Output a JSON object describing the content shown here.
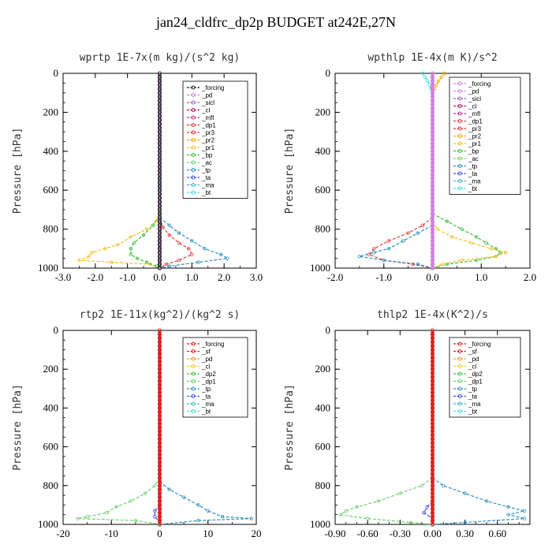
{
  "title": "jan24_cldfrc_dp2p  BUDGET at242E,27N",
  "chart_data": [
    {
      "type": "line",
      "title": "wprtp  1E-7x(m kg)/(s^2 kg)",
      "ylabel": "Pressure [hPa]",
      "xlim": [
        -3.0,
        3.0
      ],
      "ylim": [
        1000,
        0
      ],
      "xticks": [
        "-3.0",
        "-2.0",
        "-1.0",
        "0.0",
        "1.0",
        "2.0",
        "3.0"
      ],
      "yticks": [
        "0",
        "200",
        "400",
        "600",
        "800",
        "1000"
      ],
      "legend": [
        "_forcing",
        "_pd",
        "_sicl",
        "_cl",
        "_mfl",
        "_dp1",
        "_pr3",
        "_pr2",
        "_pr1",
        "_bp",
        "_ac",
        "_tp",
        "_ta",
        "_ma",
        "_bt"
      ],
      "legend_colors": [
        "#222222",
        "#d080e0",
        "#9a60d0",
        "#b01070",
        "#c03090",
        "#e04040",
        "#ff3030",
        "#ffa500",
        "#f0c020",
        "#40c040",
        "#70d070",
        "#3090c0",
        "#4050e0",
        "#40b0d0",
        "#40e0e0"
      ],
      "series": [
        {
          "name": "_pr1",
          "color": "#f0c020",
          "pressure": [
            720,
            760,
            800,
            840,
            880,
            900,
            920,
            940,
            960,
            970,
            980,
            1000
          ],
          "values": [
            0,
            -0.1,
            -0.4,
            -0.9,
            -1.3,
            -1.7,
            -2.1,
            -2.2,
            -2.5,
            -1.5,
            -0.3,
            0
          ]
        },
        {
          "name": "_ac",
          "color": "#40c040",
          "pressure": [
            730,
            780,
            830,
            870,
            900,
            930,
            950,
            970,
            990,
            1000
          ],
          "values": [
            0,
            -0.2,
            -0.5,
            -0.8,
            -0.9,
            -0.9,
            -0.7,
            -0.4,
            -0.1,
            0
          ]
        },
        {
          "name": "_tp",
          "color": "#3090c0",
          "pressure": [
            740,
            780,
            820,
            860,
            900,
            930,
            950,
            970,
            990,
            1000
          ],
          "values": [
            0,
            0.3,
            0.6,
            1.0,
            1.4,
            1.9,
            2.1,
            1.2,
            0.3,
            0
          ]
        },
        {
          "name": "_dp1",
          "color": "#e04040",
          "pressure": [
            740,
            790,
            830,
            870,
            900,
            930,
            960,
            980,
            1000
          ],
          "values": [
            0,
            0.1,
            0.3,
            0.6,
            0.9,
            1.0,
            0.6,
            0.2,
            0
          ]
        }
      ]
    },
    {
      "type": "line",
      "title": "wpthlp  1E-4x(m K)/s^2",
      "ylabel": "Pressure [hPa]",
      "xlim": [
        -2.0,
        2.0
      ],
      "ylim": [
        1000,
        0
      ],
      "xticks": [
        "-2.0",
        "-1.0",
        "0.0",
        "1.0",
        "2.0"
      ],
      "yticks": [
        "0",
        "200",
        "400",
        "600",
        "800",
        "1000"
      ],
      "legend": [
        "_forcing",
        "_pd",
        "_sicl",
        "_cl",
        "_mfl",
        "_dp1",
        "_pr3",
        "_pr2",
        "_pr1",
        "_bp",
        "_ac",
        "_tp",
        "_ta",
        "_ma",
        "_bt"
      ],
      "legend_colors": [
        "#d080e0",
        "#d080e0",
        "#9a60d0",
        "#b01070",
        "#c03090",
        "#e04040",
        "#ff3030",
        "#ffa500",
        "#f0c020",
        "#40c040",
        "#70d070",
        "#3090c0",
        "#4050e0",
        "#40b0d0",
        "#40e0e0"
      ],
      "series": [
        {
          "name": "_ac",
          "color": "#40c040",
          "pressure": [
            720,
            760,
            800,
            840,
            870,
            900,
            920,
            940,
            960,
            980,
            1000
          ],
          "values": [
            0,
            0.3,
            0.6,
            0.9,
            1.1,
            1.3,
            1.4,
            1.3,
            0.9,
            0.3,
            0
          ]
        },
        {
          "name": "_pr1",
          "color": "#f0c020",
          "pressure": [
            760,
            800,
            840,
            870,
            900,
            920,
            940,
            960,
            980,
            1000
          ],
          "values": [
            0,
            0.1,
            0.4,
            0.8,
            1.2,
            1.5,
            1.3,
            0.6,
            0.2,
            0
          ]
        },
        {
          "name": "_dp1",
          "color": "#e04040",
          "pressure": [
            740,
            780,
            820,
            860,
            900,
            930,
            960,
            980,
            1000
          ],
          "values": [
            0,
            -0.2,
            -0.5,
            -0.9,
            -1.2,
            -1.3,
            -1.0,
            -0.4,
            0
          ]
        },
        {
          "name": "_tp",
          "color": "#3090c0",
          "pressure": [
            780,
            820,
            860,
            900,
            920,
            940,
            960,
            980,
            1000
          ],
          "values": [
            0,
            -0.3,
            -0.6,
            -0.9,
            -1.2,
            -1.5,
            -1.0,
            -0.3,
            0
          ]
        },
        {
          "name": "_pr2",
          "color": "#ffa500",
          "pressure": [
            0,
            20,
            40,
            60,
            80,
            100
          ],
          "values": [
            0.25,
            0.18,
            0.12,
            0.08,
            0.04,
            0
          ]
        },
        {
          "name": "_bt",
          "color": "#40e0e0",
          "pressure": [
            0,
            20,
            40,
            60,
            80,
            100
          ],
          "values": [
            -0.2,
            -0.15,
            -0.1,
            -0.06,
            -0.03,
            0
          ]
        }
      ]
    },
    {
      "type": "line",
      "title": "rtp2  1E-11x(kg^2)/(kg^2 s)",
      "ylabel": "Pressure [hPa]",
      "xlim": [
        -20,
        20
      ],
      "ylim": [
        1000,
        0
      ],
      "xticks": [
        "-20",
        "-10",
        "0",
        "10",
        "20"
      ],
      "yticks": [
        "0",
        "200",
        "400",
        "600",
        "800",
        "1000"
      ],
      "legend": [
        "_forcing",
        "_sf",
        "_pd",
        "_cl",
        "_dp2",
        "_dp1",
        "_tp",
        "_ta",
        "_ma",
        "_bt"
      ],
      "legend_colors": [
        "#e02020",
        "#e02020",
        "#f0a020",
        "#f0d020",
        "#40c040",
        "#70d070",
        "#3090c0",
        "#4050e0",
        "#40b0d0",
        "#40e0e0"
      ],
      "series": [
        {
          "name": "_dp1",
          "color": "#70d070",
          "pressure": [
            760,
            800,
            840,
            880,
            910,
            940,
            960,
            970,
            980,
            1000
          ],
          "values": [
            0,
            -1,
            -3,
            -6,
            -9,
            -11,
            -15,
            -17,
            -5,
            0
          ]
        },
        {
          "name": "_tp",
          "color": "#3090c0",
          "pressure": [
            780,
            820,
            860,
            900,
            930,
            960,
            970,
            980,
            1000
          ],
          "values": [
            0,
            2,
            5,
            8,
            10,
            13,
            19,
            8,
            0
          ]
        },
        {
          "name": "_ta",
          "color": "#4050e0",
          "pressure": [
            900,
            930,
            960,
            990
          ],
          "values": [
            0,
            -1,
            -1,
            0
          ]
        }
      ]
    },
    {
      "type": "line",
      "title": "thlp2  1E-4x(K^2)/s",
      "ylabel": "Pressure [hPa]",
      "xlim": [
        -0.9,
        0.9
      ],
      "ylim": [
        1000,
        0
      ],
      "xticks": [
        "-0.90",
        "-0.60",
        "-0.30",
        "0.00",
        "0.30",
        "0.60"
      ],
      "yticks": [
        "0",
        "200",
        "400",
        "600",
        "800",
        "1000"
      ],
      "legend": [
        "_forcing",
        "_sf",
        "_pd",
        "_cl",
        "_dp2",
        "_dp1",
        "_tp",
        "_ta",
        "_ma",
        "_bt"
      ],
      "legend_colors": [
        "#e02020",
        "#e02020",
        "#f0a020",
        "#f0d020",
        "#40c040",
        "#70d070",
        "#3090c0",
        "#4050e0",
        "#40b0d0",
        "#40e0e0"
      ],
      "series": [
        {
          "name": "_dp1",
          "color": "#70d070",
          "pressure": [
            760,
            800,
            840,
            880,
            910,
            930,
            950,
            970,
            990,
            1000
          ],
          "values": [
            0,
            -0.1,
            -0.3,
            -0.5,
            -0.7,
            -0.8,
            -0.85,
            -0.6,
            -0.2,
            0
          ]
        },
        {
          "name": "_tp",
          "color": "#3090c0",
          "pressure": [
            760,
            800,
            840,
            880,
            910,
            930,
            950,
            970,
            990,
            1000
          ],
          "values": [
            0,
            0.1,
            0.3,
            0.5,
            0.7,
            0.85,
            0.7,
            0.85,
            0.3,
            0
          ]
        },
        {
          "name": "_ta",
          "color": "#4050e0",
          "pressure": [
            880,
            910,
            940,
            970
          ],
          "values": [
            0,
            -0.05,
            -0.08,
            0
          ]
        }
      ]
    }
  ]
}
